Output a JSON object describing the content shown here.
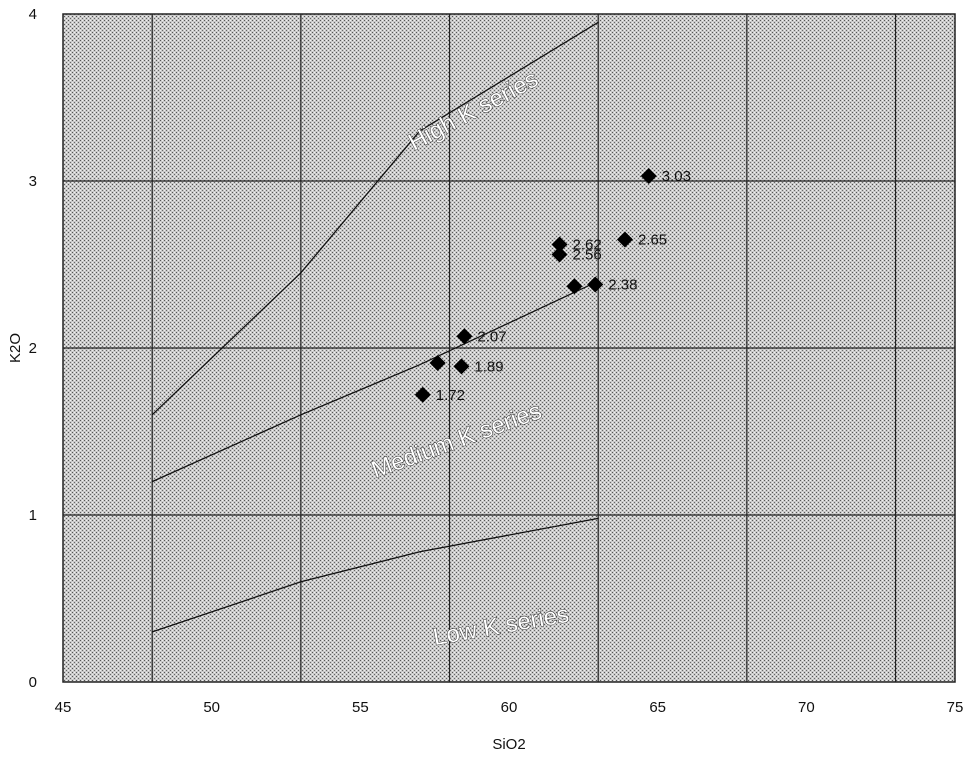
{
  "chart_data": {
    "type": "scatter",
    "xlabel": "SiO2",
    "ylabel": "K2O",
    "xlim": [
      45,
      75
    ],
    "ylim": [
      0,
      4
    ],
    "x_ticks": [
      "45",
      "50",
      "55",
      "60",
      "65",
      "70",
      "75"
    ],
    "y_ticks": [
      "0",
      "1",
      "2",
      "3",
      "4"
    ],
    "grid": true,
    "boundaries": [
      {
        "name": "high-medium",
        "points": [
          [
            48,
            1.6
          ],
          [
            53,
            2.45
          ],
          [
            57,
            3.3
          ],
          [
            63,
            3.95
          ]
        ]
      },
      {
        "name": "medium-low",
        "points": [
          [
            48,
            1.2
          ],
          [
            53,
            1.6
          ],
          [
            57,
            1.9
          ],
          [
            63,
            2.4
          ]
        ]
      },
      {
        "name": "low-floor",
        "points": [
          [
            48,
            0.3
          ],
          [
            53,
            0.6
          ],
          [
            57,
            0.78
          ],
          [
            63,
            0.98
          ]
        ]
      }
    ],
    "regions": [
      {
        "label": "High K series",
        "x": 56.8,
        "y": 3.18,
        "angle": -28
      },
      {
        "label": "Medium K series",
        "x": 55.5,
        "y": 1.22,
        "angle": -20
      },
      {
        "label": "Low K series",
        "x": 57.5,
        "y": 0.22,
        "angle": -10
      }
    ],
    "points": [
      {
        "x": 57.1,
        "y": 1.72,
        "label": "1.72"
      },
      {
        "x": 57.6,
        "y": 1.91,
        "label": ""
      },
      {
        "x": 58.4,
        "y": 1.89,
        "label": "1.89"
      },
      {
        "x": 58.5,
        "y": 2.07,
        "label": "2.07"
      },
      {
        "x": 61.7,
        "y": 2.62,
        "label": "2.62"
      },
      {
        "x": 61.7,
        "y": 2.56,
        "label": "2.56"
      },
      {
        "x": 62.2,
        "y": 2.37,
        "label": ""
      },
      {
        "x": 62.9,
        "y": 2.38,
        "label": "2.38"
      },
      {
        "x": 63.9,
        "y": 2.65,
        "label": "2.65"
      },
      {
        "x": 64.7,
        "y": 3.03,
        "label": "3.03"
      }
    ]
  }
}
